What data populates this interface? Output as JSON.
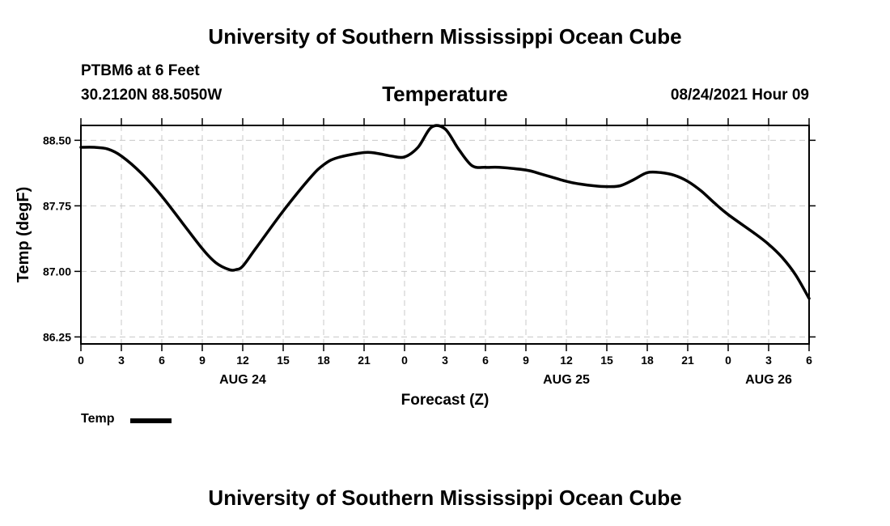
{
  "header": {
    "title_top": "University of Southern Mississippi Ocean Cube",
    "title_bottom": "University of Southern Mississippi Ocean Cube",
    "station": "PTBM6 at 6 Feet",
    "coords": "30.2120N  88.5050W",
    "datetime": "08/24/2021 Hour 09"
  },
  "legend": {
    "label": "Temp",
    "color": "#000000"
  },
  "chart_data": {
    "type": "line",
    "title": "Temperature",
    "xlabel": "Forecast (Z)",
    "ylabel": "Temp (degF)",
    "ylim": [
      86.17,
      88.67
    ],
    "xlim": [
      0,
      54
    ],
    "grid": true,
    "legend_position": "bottom-left",
    "x_tick_labels": [
      "0",
      "3",
      "6",
      "9",
      "12",
      "15",
      "18",
      "21",
      "0",
      "3",
      "6",
      "9",
      "12",
      "15",
      "18",
      "21",
      "0",
      "3",
      "6"
    ],
    "y_ticks": [
      86.25,
      87.0,
      87.75,
      88.5
    ],
    "y_tick_labels": [
      "86.25",
      "87.00",
      "87.75",
      "88.50"
    ],
    "date_labels": [
      {
        "label": "AUG 24",
        "x": 12
      },
      {
        "label": "AUG 25",
        "x": 36
      },
      {
        "label": "AUG 26",
        "x": 51
      }
    ],
    "series": [
      {
        "name": "Temp",
        "color": "#000000",
        "x": [
          0,
          1,
          2,
          3,
          4.5,
          6,
          7.5,
          9,
          10,
          11,
          11.5,
          12,
          13,
          15,
          17,
          18,
          19,
          21,
          22,
          23,
          24,
          25,
          26,
          27,
          28,
          29,
          30,
          31,
          33,
          34,
          36,
          37,
          38,
          39,
          40,
          41,
          42,
          43,
          44,
          45,
          46,
          47,
          48,
          50,
          51,
          52,
          53,
          54
        ],
        "y": [
          88.42,
          88.42,
          88.4,
          88.32,
          88.12,
          87.86,
          87.56,
          87.26,
          87.1,
          87.02,
          87.02,
          87.06,
          87.27,
          87.69,
          88.07,
          88.22,
          88.3,
          88.36,
          88.35,
          88.32,
          88.31,
          88.42,
          88.65,
          88.63,
          88.4,
          88.21,
          88.19,
          88.19,
          88.16,
          88.12,
          88.03,
          88.0,
          87.98,
          87.97,
          87.98,
          88.05,
          88.13,
          88.13,
          88.1,
          88.03,
          87.92,
          87.78,
          87.65,
          87.43,
          87.31,
          87.16,
          86.96,
          86.69
        ]
      }
    ]
  }
}
